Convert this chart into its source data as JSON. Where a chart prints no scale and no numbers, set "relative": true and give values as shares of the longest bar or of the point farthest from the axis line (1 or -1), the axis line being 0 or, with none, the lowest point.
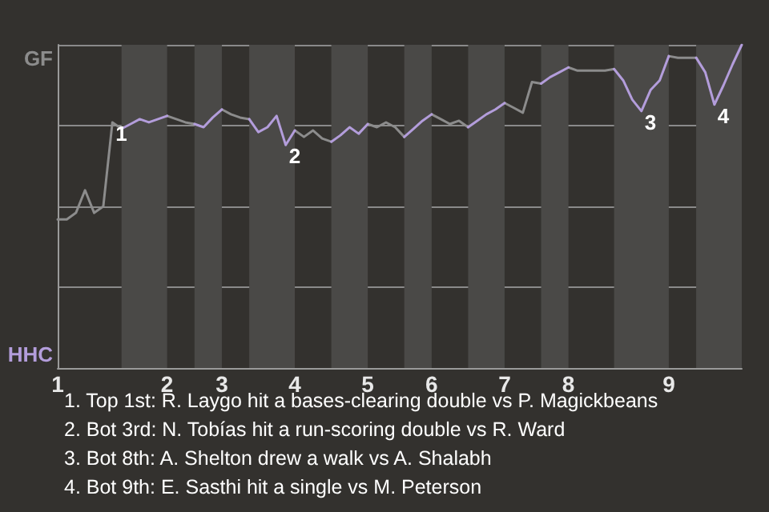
{
  "chart_data": {
    "type": "line",
    "relative": true,
    "categories": [
      "1",
      null,
      null,
      null,
      null,
      null,
      null,
      null,
      null,
      null,
      null,
      null,
      "2",
      null,
      null,
      null,
      null,
      null,
      "3",
      null,
      null,
      null,
      null,
      null,
      null,
      null,
      "4",
      null,
      null,
      null,
      null,
      null,
      null,
      null,
      "5",
      null,
      null,
      null,
      null,
      null,
      null,
      "6",
      null,
      null,
      null,
      null,
      null,
      null,
      null,
      "7",
      null,
      null,
      null,
      null,
      null,
      null,
      "8",
      null,
      null,
      null,
      null,
      null,
      null,
      null,
      null,
      null,
      null,
      "9",
      null,
      null,
      null,
      null,
      null,
      null,
      null,
      null
    ],
    "grid": "y",
    "marker": "none",
    "line_style": "solid",
    "series": [
      {
        "color": "#8c8c8c",
        "values": [
          0.46,
          0.46,
          0.48,
          0.55,
          0.48,
          0.5,
          0.76,
          0.74,
          null,
          null,
          null,
          null,
          0.78,
          0.77,
          0.76,
          0.755,
          null,
          null,
          0.8,
          0.785,
          0.775,
          0.77,
          null,
          null,
          null,
          null,
          0.735,
          0.715,
          0.735,
          0.71,
          0.7,
          null,
          null,
          null,
          0.755,
          0.745,
          0.76,
          0.745,
          0.715,
          null,
          null,
          0.785,
          0.77,
          0.755,
          0.765,
          0.745,
          null,
          null,
          null,
          0.82,
          0.805,
          0.79,
          0.885,
          0.88,
          null,
          null,
          0.93,
          0.92,
          0.92,
          0.92,
          0.92,
          0.925,
          null,
          null,
          null,
          null,
          null,
          0.965,
          0.96,
          0.96,
          0.96,
          null,
          null,
          null,
          null,
          null
        ],
        "name": null
      },
      {
        "color": "#b39ddb",
        "values": [
          null,
          null,
          null,
          null,
          null,
          null,
          null,
          0.74,
          0.755,
          0.77,
          0.76,
          0.77,
          0.78,
          null,
          null,
          0.755,
          0.745,
          0.775,
          0.8,
          null,
          null,
          0.77,
          0.73,
          0.745,
          0.78,
          0.69,
          0.735,
          null,
          null,
          null,
          0.7,
          0.72,
          0.745,
          0.725,
          0.755,
          null,
          null,
          null,
          0.715,
          0.74,
          0.765,
          0.785,
          null,
          null,
          null,
          0.745,
          0.765,
          0.785,
          0.8,
          0.82,
          null,
          null,
          null,
          0.88,
          0.9,
          0.915,
          0.93,
          null,
          null,
          null,
          null,
          0.925,
          0.89,
          0.83,
          0.795,
          0.86,
          0.89,
          0.965,
          null,
          null,
          0.96,
          0.915,
          0.815,
          0.875,
          0.94,
          1
        ]
      }
    ],
    "annotations": [
      "GF",
      "HHC",
      {
        "text": "1",
        "y": 0.76
      },
      {
        "text": "2",
        "y": 0.69
      },
      {
        "text": "3",
        "y": 0.795
      },
      {
        "text": "4",
        "y": 0.815
      },
      "1. Top 1st: R. Laygo hit a bases-clearing double vs P. Magickbeans",
      "2. Bot 3rd: N. Tobías hit a run-scoring double vs R. Ward",
      "3. Bot 8th: A. Shelton drew a walk vs A. Shalabh",
      "4. Bot 9th: E. Sasthi hit a single vs M. Peterson"
    ]
  }
}
